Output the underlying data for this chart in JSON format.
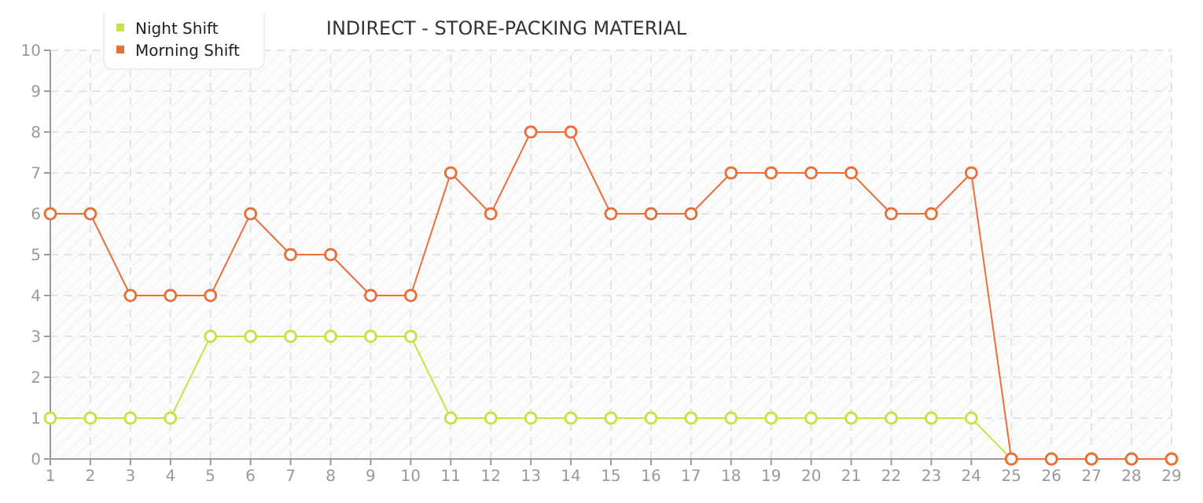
{
  "chart_data": {
    "type": "line",
    "title": "INDIRECT - STORE-PACKING  MATERIAL",
    "x": [
      1,
      2,
      3,
      4,
      5,
      6,
      7,
      8,
      9,
      10,
      11,
      12,
      13,
      14,
      15,
      16,
      17,
      18,
      19,
      20,
      21,
      22,
      23,
      24,
      25,
      26,
      27,
      28,
      29
    ],
    "series": [
      {
        "name": "Night Shift",
        "color": "#c8e04a",
        "values": [
          1,
          1,
          1,
          1,
          3,
          3,
          3,
          3,
          3,
          3,
          1,
          1,
          1,
          1,
          1,
          1,
          1,
          1,
          1,
          1,
          1,
          1,
          1,
          1,
          0,
          0,
          0,
          0,
          0
        ]
      },
      {
        "name": "Morning Shift",
        "color": "#e8703a",
        "values": [
          6,
          6,
          4,
          4,
          4,
          6,
          5,
          5,
          4,
          4,
          7,
          6,
          8,
          8,
          6,
          6,
          6,
          7,
          7,
          7,
          7,
          6,
          6,
          7,
          0,
          0,
          0,
          0,
          0
        ]
      }
    ],
    "xlim": [
      1,
      29
    ],
    "xticks": [
      1,
      2,
      3,
      4,
      5,
      6,
      7,
      8,
      9,
      10,
      11,
      12,
      13,
      14,
      15,
      16,
      17,
      18,
      19,
      20,
      21,
      22,
      23,
      24,
      25,
      26,
      27,
      28,
      29
    ],
    "ylim": [
      0,
      10
    ],
    "yticks": [
      0,
      1,
      2,
      3,
      4,
      5,
      6,
      7,
      8,
      9,
      10
    ],
    "grid": true,
    "legend": "top left",
    "marker": "circle",
    "line_style": "solid"
  }
}
